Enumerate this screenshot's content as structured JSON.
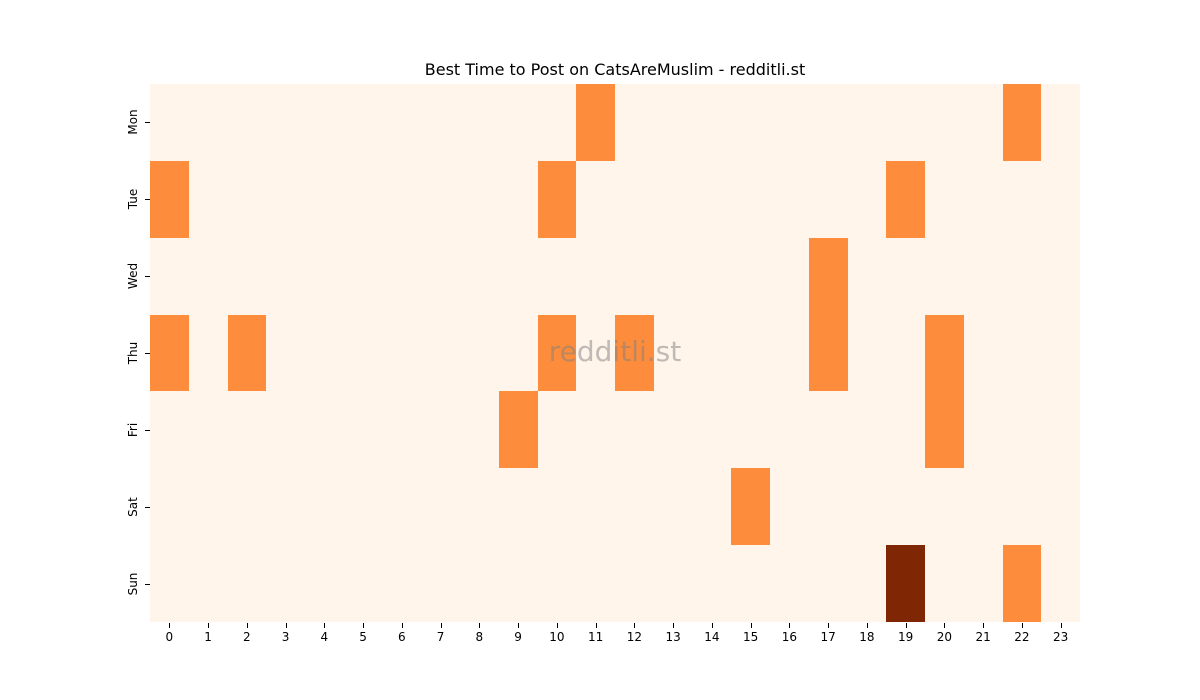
{
  "chart_data": {
    "type": "heatmap",
    "title": "Best Time to Post on CatsAreMuslim - redditli.st",
    "xlabel": "",
    "ylabel": "",
    "x": [
      0,
      1,
      2,
      3,
      4,
      5,
      6,
      7,
      8,
      9,
      10,
      11,
      12,
      13,
      14,
      15,
      16,
      17,
      18,
      19,
      20,
      21,
      22,
      23
    ],
    "y": [
      "Mon",
      "Tue",
      "Wed",
      "Thu",
      "Fri",
      "Sat",
      "Sun"
    ],
    "values": [
      [
        0,
        0,
        0,
        0,
        0,
        0,
        0,
        0,
        0,
        0,
        0,
        1,
        0,
        0,
        0,
        0,
        0,
        0,
        0,
        0,
        0,
        0,
        1,
        0
      ],
      [
        1,
        0,
        0,
        0,
        0,
        0,
        0,
        0,
        0,
        0,
        1,
        0,
        0,
        0,
        0,
        0,
        0,
        0,
        0,
        1,
        0,
        0,
        0,
        0
      ],
      [
        0,
        0,
        0,
        0,
        0,
        0,
        0,
        0,
        0,
        0,
        0,
        0,
        0,
        0,
        0,
        0,
        0,
        1,
        0,
        0,
        0,
        0,
        0,
        0
      ],
      [
        1,
        0,
        1,
        0,
        0,
        0,
        0,
        0,
        0,
        0,
        1,
        0,
        1,
        0,
        0,
        0,
        0,
        1,
        0,
        0,
        1,
        0,
        0,
        0
      ],
      [
        0,
        0,
        0,
        0,
        0,
        0,
        0,
        0,
        0,
        1,
        0,
        0,
        0,
        0,
        0,
        0,
        0,
        0,
        0,
        0,
        1,
        0,
        0,
        0
      ],
      [
        0,
        0,
        0,
        0,
        0,
        0,
        0,
        0,
        0,
        0,
        0,
        0,
        0,
        0,
        0,
        1,
        0,
        0,
        0,
        0,
        0,
        0,
        0,
        0
      ],
      [
        0,
        0,
        0,
        0,
        0,
        0,
        0,
        0,
        0,
        0,
        0,
        0,
        0,
        0,
        0,
        0,
        0,
        0,
        0,
        2,
        0,
        0,
        1,
        0
      ]
    ],
    "colormap": "Oranges",
    "colors": {
      "0": "#fff5eb",
      "1": "#fd8d3c",
      "2": "#7f2704"
    },
    "grid": false,
    "legend": "none",
    "watermark": "redditli.st"
  }
}
